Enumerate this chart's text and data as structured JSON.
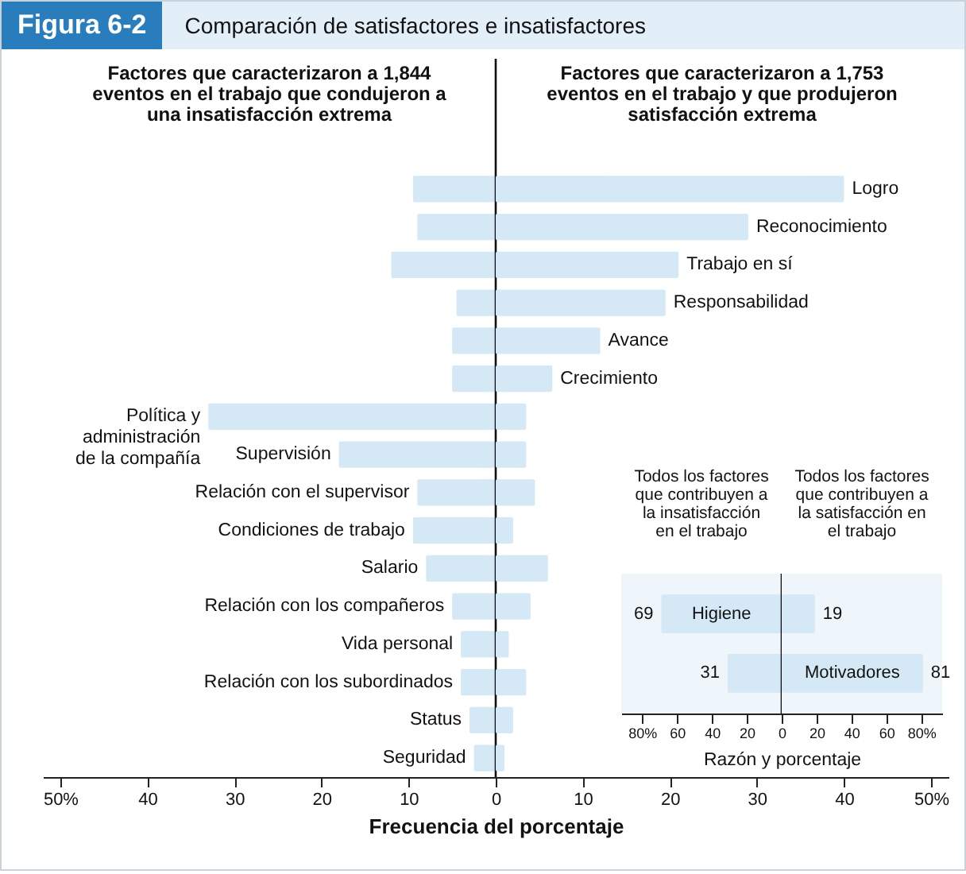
{
  "chart_data": [
    {
      "type": "bar",
      "orientation": "horizontal",
      "title": "Figura 6-2",
      "subtitle": "Comparación de satisfactores e insatisfactores",
      "xlabel": "Frecuencia del porcentaje",
      "annotations": [
        "Factores que caracterizaron a 1,844 eventos en el trabajo que condujeron a una insatisfacción extrema"
      ],
      "categories": [
        null,
        null,
        null,
        null,
        null,
        null,
        "Política y administración de la compañía",
        "Supervisión",
        "Relación con el supervisor",
        "Condiciones de trabajo",
        "Salario",
        "Relación con los compañeros",
        "Vida personal",
        "Relación con los subordinados",
        "Status",
        "Seguridad"
      ],
      "series": [
        {
          "color": "#d4e8f6",
          "values": [
            9.5,
            9,
            12,
            4.5,
            5,
            5,
            33,
            18,
            9,
            9.5,
            8,
            5,
            4,
            4,
            3,
            2.5
          ]
        }
      ],
      "xlim": [
        52,
        0
      ],
      "xticks": [
        {
          "value": 50,
          "label": "50%"
        },
        40,
        30,
        20,
        10,
        0
      ],
      "ref_lines": [
        {
          "axis": "x",
          "value": 0
        }
      ]
    },
    {
      "type": "bar",
      "orientation": "horizontal",
      "annotations": [
        "Factores que caracterizaron a 1,753 eventos en el trabajo y que produjeron satisfacción extrema"
      ],
      "categories": [
        "Logro",
        "Reconocimiento",
        "Trabajo en sí",
        "Responsabilidad",
        "Avance",
        "Crecimiento",
        null,
        null,
        null,
        null,
        null,
        null,
        null,
        null,
        null,
        null
      ],
      "series": [
        {
          "color": "#d4e8f6",
          "values": [
            40,
            29,
            21,
            19.5,
            12,
            6.5,
            3.5,
            3.5,
            4.5,
            2,
            6,
            4,
            1.5,
            3.5,
            2,
            1
          ]
        }
      ],
      "xlim": [
        0,
        52
      ],
      "xticks": [
        {
          "value": 0,
          "label": null
        },
        10,
        20,
        30,
        40,
        {
          "value": 50,
          "label": "50%"
        }
      ]
    },
    {
      "type": "bar",
      "orientation": "horizontal",
      "xlabel": "Razón y porcentaje",
      "annotations": [
        "Todos los factores que contribuyen a la insatisfacción en el trabajo"
      ],
      "categories": [
        "Higiene",
        null
      ],
      "series": [
        {
          "color": "#d4e8f6",
          "values": [
            69,
            31
          ]
        }
      ],
      "data_labels": true,
      "xlim": [
        92,
        0
      ],
      "xticks": [
        {
          "value": 80,
          "label": "80%"
        },
        60,
        40,
        20,
        0
      ],
      "ref_lines": [
        {
          "axis": "x",
          "value": 0
        }
      ]
    },
    {
      "type": "bar",
      "orientation": "horizontal",
      "annotations": [
        "Todos los factores que contribuyen a la satisfacción en el trabajo"
      ],
      "categories": [
        null,
        "Motivadores"
      ],
      "series": [
        {
          "color": "#d4e8f6",
          "values": [
            19,
            81
          ]
        }
      ],
      "data_labels": true,
      "xlim": [
        0,
        92
      ],
      "xticks": [
        {
          "value": 0,
          "label": null
        },
        20,
        40,
        60,
        {
          "value": 80,
          "label": "80%"
        }
      ]
    }
  ]
}
